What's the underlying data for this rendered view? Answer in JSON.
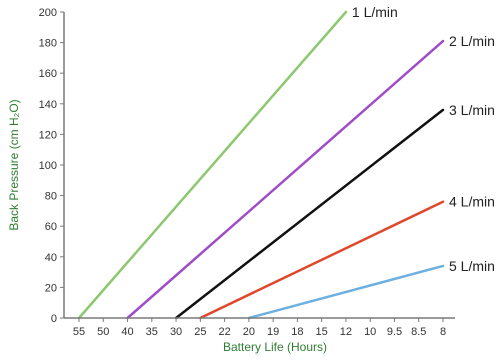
{
  "chart_data": {
    "type": "line",
    "title": "",
    "xlabel": "Battery Life (Hours)",
    "ylabel": "Back Pressure (cm H₂O)",
    "x_tick_labels": [
      "55",
      "50",
      "40",
      "35",
      "30",
      "25",
      "22",
      "20",
      "19",
      "18",
      "15",
      "12",
      "10",
      "9.5",
      "8.5",
      "8"
    ],
    "y_ticks": [
      0,
      20,
      40,
      60,
      80,
      100,
      120,
      140,
      160,
      180,
      200
    ],
    "ylim": [
      0,
      200
    ],
    "grid": false,
    "series": [
      {
        "name": "1 L/min",
        "color": "#8cc870",
        "start_x_label": "55",
        "end_x_label": "12",
        "start_y": 0,
        "end_y": 200
      },
      {
        "name": "2 L/min",
        "color": "#a04cc8",
        "start_x_label": "40",
        "end_x_label": "8",
        "start_y": 0,
        "end_y": 181
      },
      {
        "name": "3 L/min",
        "color": "#111111",
        "start_x_label": "30",
        "end_x_label": "8",
        "start_y": 0,
        "end_y": 136
      },
      {
        "name": "4 L/min",
        "color": "#e0482c",
        "start_x_label": "25",
        "end_x_label": "8",
        "start_y": 0,
        "end_y": 76
      },
      {
        "name": "5 L/min",
        "color": "#6cb0e0",
        "start_x_label": "20",
        "end_x_label": "8",
        "start_y": 0,
        "end_y": 34
      }
    ]
  }
}
